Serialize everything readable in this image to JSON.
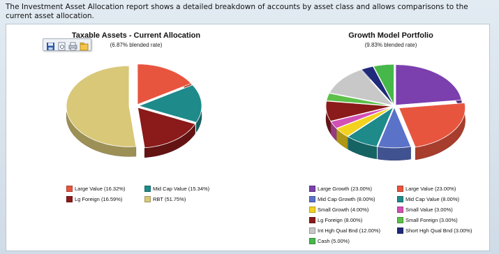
{
  "intro_text": "The Investment Asset Allocation report shows a detailed breakdown of accounts by asset class and allows comparisons to the current asset allocation.",
  "toolbar": {
    "items": [
      {
        "icon": "save-icon"
      },
      {
        "icon": "print-preview-icon"
      },
      {
        "icon": "print-icon"
      },
      {
        "icon": "export-icon"
      }
    ]
  },
  "chart_data": [
    {
      "type": "pie",
      "title": "Taxable Assets - Current Allocation",
      "subtitle": "(6.87% blended rate)",
      "legend_position": "bottom",
      "slices": [
        {
          "label": "Large Value (16.32%)",
          "value": 16.32,
          "color": "#e8553f"
        },
        {
          "label": "Mid Cap Value (15.34%)",
          "value": 15.34,
          "color": "#1e8a8a"
        },
        {
          "label": "Lg Foreign (16.59%)",
          "value": 16.59,
          "color": "#8b1a1a"
        },
        {
          "label": "RBT (51.75%)",
          "value": 51.75,
          "color": "#d8c878"
        }
      ]
    },
    {
      "type": "pie",
      "title": "Growth Model Portfolio",
      "subtitle": "(9.83% blended rate)",
      "legend_position": "bottom",
      "slices": [
        {
          "label": "Large Growth (23.00%)",
          "value": 23.0,
          "color": "#7b3fae"
        },
        {
          "label": "Large Value (23.00%)",
          "value": 23.0,
          "color": "#e8553f"
        },
        {
          "label": "Mid Cap Growth (8.00%)",
          "value": 8.0,
          "color": "#5a72c8"
        },
        {
          "label": "Mid Cap Value (8.00%)",
          "value": 8.0,
          "color": "#1e8a8a"
        },
        {
          "label": "Small Growth (4.00%)",
          "value": 4.0,
          "color": "#f2d21e"
        },
        {
          "label": "Small Value (3.00%)",
          "value": 3.0,
          "color": "#d24fb4"
        },
        {
          "label": "Lg Foreign (8.00%)",
          "value": 8.0,
          "color": "#8b1a1a"
        },
        {
          "label": "Small Foreign (3.00%)",
          "value": 3.0,
          "color": "#5cc04a"
        },
        {
          "label": "Int Hgh Qual Bnd (12.00%)",
          "value": 12.0,
          "color": "#c8c8c8"
        },
        {
          "label": "Short Hgh Qual Bnd (3.00%)",
          "value": 3.0,
          "color": "#1f2a7a"
        },
        {
          "label": "Cash (5.00%)",
          "value": 5.0,
          "color": "#46b84a"
        }
      ]
    }
  ]
}
